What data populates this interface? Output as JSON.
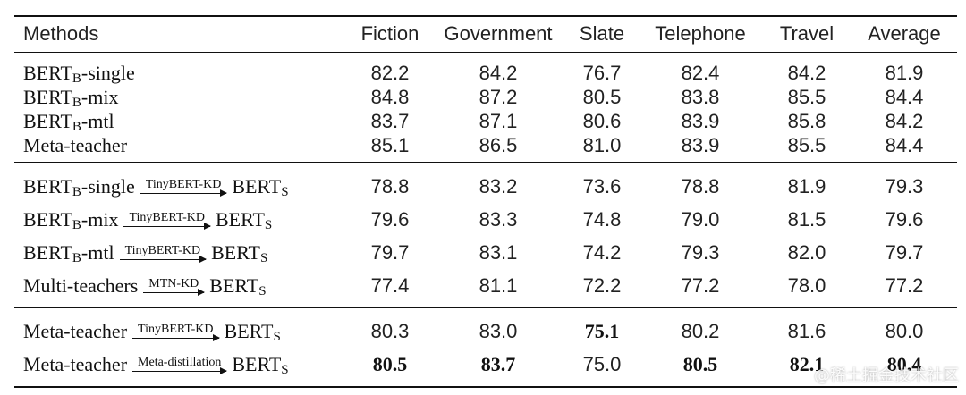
{
  "table": {
    "headers": [
      "Methods",
      "Fiction",
      "Government",
      "Slate",
      "Telephone",
      "Travel",
      "Average"
    ],
    "group1": [
      {
        "base": "BERT",
        "sub": "B",
        "suffix": "-single",
        "values": [
          "82.2",
          "84.2",
          "76.7",
          "82.4",
          "84.2",
          "81.9"
        ]
      },
      {
        "base": "BERT",
        "sub": "B",
        "suffix": "-mix",
        "values": [
          "84.8",
          "87.2",
          "80.5",
          "83.8",
          "85.5",
          "84.4"
        ]
      },
      {
        "base": "BERT",
        "sub": "B",
        "suffix": "-mtl",
        "values": [
          "83.7",
          "87.1",
          "80.6",
          "83.9",
          "85.8",
          "84.2"
        ]
      },
      {
        "base": "Meta-teacher",
        "sub": "",
        "suffix": "",
        "values": [
          "85.1",
          "86.5",
          "81.0",
          "83.9",
          "85.5",
          "84.4"
        ]
      }
    ],
    "group2": [
      {
        "base": "BERT",
        "sub": "B",
        "suffix": "-single",
        "arrow": "TinyBERT-KD",
        "target": "BERT",
        "target_sub": "S",
        "values": [
          "78.8",
          "83.2",
          "73.6",
          "78.8",
          "81.9",
          "79.3"
        ]
      },
      {
        "base": "BERT",
        "sub": "B",
        "suffix": "-mix",
        "arrow": "TinyBERT-KD",
        "target": "BERT",
        "target_sub": "S",
        "values": [
          "79.6",
          "83.3",
          "74.8",
          "79.0",
          "81.5",
          "79.6"
        ]
      },
      {
        "base": "BERT",
        "sub": "B",
        "suffix": "-mtl",
        "arrow": "TinyBERT-KD",
        "target": "BERT",
        "target_sub": "S",
        "values": [
          "79.7",
          "83.1",
          "74.2",
          "79.3",
          "82.0",
          "79.7"
        ]
      },
      {
        "base": "Multi-teachers",
        "sub": "",
        "suffix": "",
        "arrow": "MTN-KD",
        "target": "BERT",
        "target_sub": "S",
        "values": [
          "77.4",
          "81.1",
          "72.2",
          "77.2",
          "78.0",
          "77.2"
        ]
      }
    ],
    "group3": [
      {
        "base": "Meta-teacher",
        "arrow": "TinyBERT-KD",
        "target": "BERT",
        "target_sub": "S",
        "values": [
          "80.3",
          "83.0",
          "75.1",
          "80.2",
          "81.6",
          "80.0"
        ],
        "bold": [
          false,
          false,
          true,
          false,
          false,
          false
        ]
      },
      {
        "base": "Meta-teacher",
        "arrow": "Meta-distillation",
        "target": "BERT",
        "target_sub": "S",
        "values": [
          "80.5",
          "83.7",
          "75.0",
          "80.5",
          "82.1",
          "80.4"
        ],
        "bold": [
          true,
          true,
          false,
          true,
          true,
          true
        ]
      }
    ]
  },
  "watermark": "@稀土掘金技术社区"
}
